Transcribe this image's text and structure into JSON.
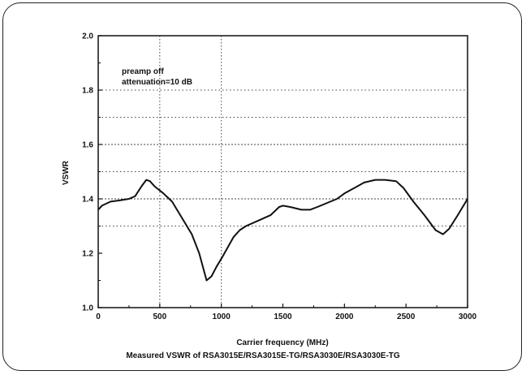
{
  "chart_data": {
    "type": "line",
    "xlabel": "Carrier frequency (MHz)",
    "ylabel": "VSWR",
    "caption": "Measured VSWR of RSA3015E/RSA3015E-TG/RSA3030E/RSA3030E-TG",
    "annotations": [
      "preamp off",
      "attenuation=10 dB"
    ],
    "xlim": [
      0,
      3000
    ],
    "ylim": [
      1.0,
      2.0
    ],
    "xticks": [
      0,
      500,
      1000,
      1500,
      2000,
      2500,
      3000
    ],
    "yticks": [
      1.0,
      1.2,
      1.4,
      1.6,
      1.8,
      2.0
    ],
    "ytick_labels": [
      "1.0",
      "1.2",
      "1.4",
      "1.6",
      "1.8",
      "2.0"
    ],
    "grid": true,
    "series": [
      {
        "x": [
          0,
          30,
          100,
          180,
          250,
          300,
          350,
          390,
          420,
          460,
          530,
          600,
          680,
          760,
          820,
          880,
          920,
          960,
          1000,
          1050,
          1100,
          1150,
          1200,
          1300,
          1400,
          1470,
          1500,
          1560,
          1650,
          1720,
          1780,
          1860,
          1940,
          2000,
          2080,
          2160,
          2250,
          2330,
          2420,
          2480,
          2560,
          2650,
          2740,
          2800,
          2850,
          2920,
          3000
        ],
        "y": [
          1.36,
          1.375,
          1.39,
          1.395,
          1.4,
          1.41,
          1.445,
          1.47,
          1.465,
          1.445,
          1.42,
          1.39,
          1.33,
          1.27,
          1.2,
          1.1,
          1.115,
          1.15,
          1.18,
          1.22,
          1.26,
          1.285,
          1.3,
          1.32,
          1.34,
          1.37,
          1.375,
          1.37,
          1.36,
          1.36,
          1.37,
          1.385,
          1.4,
          1.42,
          1.44,
          1.46,
          1.47,
          1.47,
          1.465,
          1.44,
          1.39,
          1.34,
          1.285,
          1.27,
          1.29,
          1.34,
          1.4
        ]
      }
    ]
  }
}
